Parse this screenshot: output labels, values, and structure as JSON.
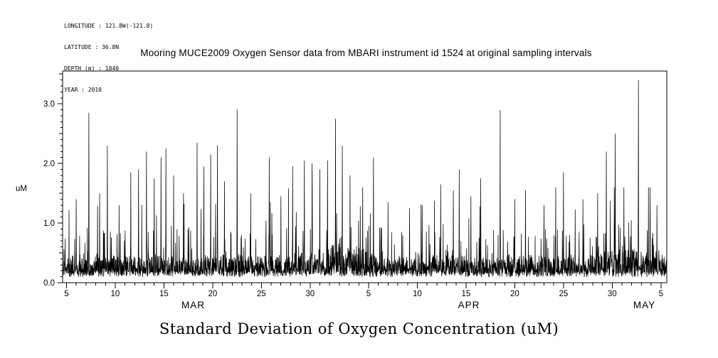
{
  "meta": {
    "lines": [
      "LONGITUDE : 121.8W(-121.8)",
      "LATITUDE : 36.8N",
      "DEPTH (m) : 1840",
      "YEAR : 2010"
    ]
  },
  "title": "Mooring MUCE2009 Oxygen Sensor data from MBARI instrument id 1524 at original sampling intervals",
  "bottom_title": "Standard Deviation of Oxygen Concentration (uM)",
  "chart_data": {
    "type": "line",
    "title": "Mooring MUCE2009 Oxygen Sensor data from MBARI instrument id 1524 at original sampling intervals",
    "caption": "Standard Deviation of Oxygen Concentration (uM)",
    "ylabel": "uM",
    "ylim": [
      0.0,
      3.55
    ],
    "xlim_days": [
      -0.4,
      61.6
    ],
    "x_day_zero": "MAR 5",
    "grid": false,
    "legend": false,
    "line_color": "#000000",
    "yticks": [
      {
        "v": 0.0,
        "label": "0.0"
      },
      {
        "v": 1.0,
        "label": "1.0"
      },
      {
        "v": 2.0,
        "label": "2.0"
      },
      {
        "v": 3.0,
        "label": "3.0"
      }
    ],
    "y_minor_step": 0.1,
    "xticks": [
      {
        "day": 0,
        "label": "5"
      },
      {
        "day": 5,
        "label": "10"
      },
      {
        "day": 10,
        "label": "15"
      },
      {
        "day": 15,
        "label": "20"
      },
      {
        "day": 20,
        "label": "25"
      },
      {
        "day": 25,
        "label": "30"
      },
      {
        "day": 31,
        "label": "5"
      },
      {
        "day": 36,
        "label": "10"
      },
      {
        "day": 41,
        "label": "15"
      },
      {
        "day": 46,
        "label": "20"
      },
      {
        "day": 51,
        "label": "25"
      },
      {
        "day": 56,
        "label": "30"
      },
      {
        "day": 61,
        "label": "5"
      }
    ],
    "month_labels": [
      {
        "day": 13.0,
        "label": "MAR"
      },
      {
        "day": 41.3,
        "label": "APR"
      },
      {
        "day": 59.3,
        "label": "MAY"
      }
    ],
    "series": {
      "name": "oxygen-stddev",
      "seed": 11,
      "samples": 3200,
      "baseline_range": [
        0.05,
        0.5
      ],
      "bumps": [
        {
          "center": 28.0,
          "width": 2.4,
          "amp": 0.6
        },
        {
          "center": 57.3,
          "width": 1.6,
          "amp": 0.5
        }
      ],
      "spikes": [
        {
          "day": 1.0,
          "value": 1.4
        },
        {
          "day": 2.3,
          "value": 2.85
        },
        {
          "day": 3.4,
          "value": 1.5
        },
        {
          "day": 4.2,
          "value": 2.3
        },
        {
          "day": 5.4,
          "value": 1.3
        },
        {
          "day": 6.6,
          "value": 1.85
        },
        {
          "day": 7.4,
          "value": 1.9
        },
        {
          "day": 8.2,
          "value": 2.2
        },
        {
          "day": 9.0,
          "value": 1.75
        },
        {
          "day": 9.7,
          "value": 2.1
        },
        {
          "day": 10.2,
          "value": 2.25
        },
        {
          "day": 11.0,
          "value": 1.8
        },
        {
          "day": 12.0,
          "value": 1.5
        },
        {
          "day": 13.4,
          "value": 2.35
        },
        {
          "day": 14.1,
          "value": 1.95
        },
        {
          "day": 14.8,
          "value": 2.15
        },
        {
          "day": 15.5,
          "value": 2.3
        },
        {
          "day": 16.2,
          "value": 1.7
        },
        {
          "day": 17.5,
          "value": 2.9
        },
        {
          "day": 18.9,
          "value": 1.5
        },
        {
          "day": 20.8,
          "value": 2.1
        },
        {
          "day": 22.0,
          "value": 1.45
        },
        {
          "day": 23.2,
          "value": 1.95
        },
        {
          "day": 24.4,
          "value": 2.05
        },
        {
          "day": 25.2,
          "value": 2.0
        },
        {
          "day": 26.0,
          "value": 1.9
        },
        {
          "day": 26.8,
          "value": 2.05
        },
        {
          "day": 27.6,
          "value": 2.75
        },
        {
          "day": 28.3,
          "value": 2.3
        },
        {
          "day": 29.1,
          "value": 1.8
        },
        {
          "day": 30.4,
          "value": 1.6
        },
        {
          "day": 31.5,
          "value": 2.1
        },
        {
          "day": 33.0,
          "value": 1.35
        },
        {
          "day": 35.2,
          "value": 1.25
        },
        {
          "day": 36.5,
          "value": 1.3
        },
        {
          "day": 38.4,
          "value": 1.65
        },
        {
          "day": 39.7,
          "value": 1.55
        },
        {
          "day": 40.3,
          "value": 1.9
        },
        {
          "day": 41.5,
          "value": 1.45
        },
        {
          "day": 42.5,
          "value": 1.75
        },
        {
          "day": 44.5,
          "value": 2.9
        },
        {
          "day": 46.0,
          "value": 1.4
        },
        {
          "day": 47.1,
          "value": 1.55
        },
        {
          "day": 49.0,
          "value": 1.3
        },
        {
          "day": 50.2,
          "value": 1.6
        },
        {
          "day": 51.0,
          "value": 1.85
        },
        {
          "day": 53.0,
          "value": 1.4
        },
        {
          "day": 54.5,
          "value": 1.5
        },
        {
          "day": 55.4,
          "value": 2.2
        },
        {
          "day": 56.3,
          "value": 2.5
        },
        {
          "day": 57.2,
          "value": 1.6
        },
        {
          "day": 58.7,
          "value": 3.4
        },
        {
          "day": 59.9,
          "value": 1.6
        },
        {
          "day": 60.6,
          "value": 1.3
        }
      ]
    }
  }
}
